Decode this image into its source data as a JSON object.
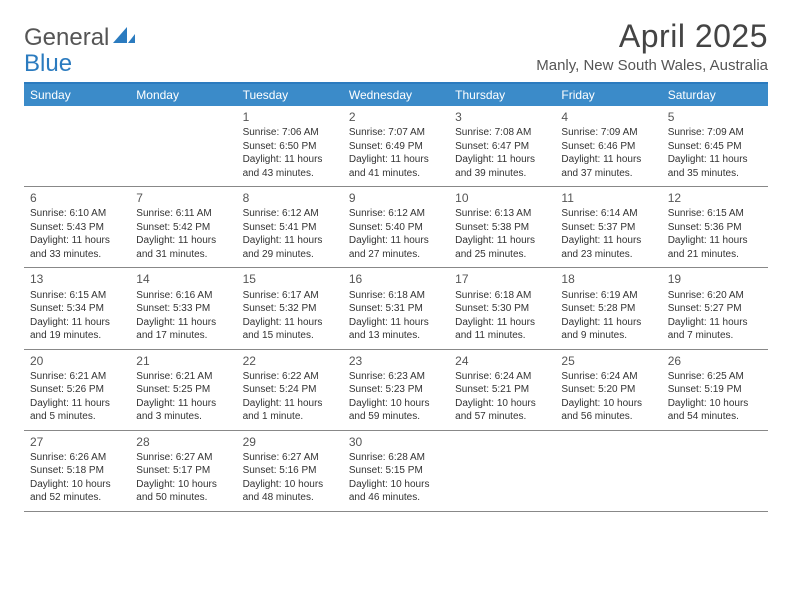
{
  "logo": {
    "text1": "General",
    "text2": "Blue"
  },
  "title": "April 2025",
  "location": "Manly, New South Wales, Australia",
  "colors": {
    "header_bar": "#3b8bc9",
    "top_rule": "#2b7bbf",
    "row_rule": "#888888",
    "text": "#333333",
    "title_text": "#444444"
  },
  "weekdays": [
    "Sunday",
    "Monday",
    "Tuesday",
    "Wednesday",
    "Thursday",
    "Friday",
    "Saturday"
  ],
  "weeks": [
    [
      {
        "num": "",
        "sunrise": "",
        "sunset": "",
        "daylight": ""
      },
      {
        "num": "",
        "sunrise": "",
        "sunset": "",
        "daylight": ""
      },
      {
        "num": "1",
        "sunrise": "Sunrise: 7:06 AM",
        "sunset": "Sunset: 6:50 PM",
        "daylight": "Daylight: 11 hours and 43 minutes."
      },
      {
        "num": "2",
        "sunrise": "Sunrise: 7:07 AM",
        "sunset": "Sunset: 6:49 PM",
        "daylight": "Daylight: 11 hours and 41 minutes."
      },
      {
        "num": "3",
        "sunrise": "Sunrise: 7:08 AM",
        "sunset": "Sunset: 6:47 PM",
        "daylight": "Daylight: 11 hours and 39 minutes."
      },
      {
        "num": "4",
        "sunrise": "Sunrise: 7:09 AM",
        "sunset": "Sunset: 6:46 PM",
        "daylight": "Daylight: 11 hours and 37 minutes."
      },
      {
        "num": "5",
        "sunrise": "Sunrise: 7:09 AM",
        "sunset": "Sunset: 6:45 PM",
        "daylight": "Daylight: 11 hours and 35 minutes."
      }
    ],
    [
      {
        "num": "6",
        "sunrise": "Sunrise: 6:10 AM",
        "sunset": "Sunset: 5:43 PM",
        "daylight": "Daylight: 11 hours and 33 minutes."
      },
      {
        "num": "7",
        "sunrise": "Sunrise: 6:11 AM",
        "sunset": "Sunset: 5:42 PM",
        "daylight": "Daylight: 11 hours and 31 minutes."
      },
      {
        "num": "8",
        "sunrise": "Sunrise: 6:12 AM",
        "sunset": "Sunset: 5:41 PM",
        "daylight": "Daylight: 11 hours and 29 minutes."
      },
      {
        "num": "9",
        "sunrise": "Sunrise: 6:12 AM",
        "sunset": "Sunset: 5:40 PM",
        "daylight": "Daylight: 11 hours and 27 minutes."
      },
      {
        "num": "10",
        "sunrise": "Sunrise: 6:13 AM",
        "sunset": "Sunset: 5:38 PM",
        "daylight": "Daylight: 11 hours and 25 minutes."
      },
      {
        "num": "11",
        "sunrise": "Sunrise: 6:14 AM",
        "sunset": "Sunset: 5:37 PM",
        "daylight": "Daylight: 11 hours and 23 minutes."
      },
      {
        "num": "12",
        "sunrise": "Sunrise: 6:15 AM",
        "sunset": "Sunset: 5:36 PM",
        "daylight": "Daylight: 11 hours and 21 minutes."
      }
    ],
    [
      {
        "num": "13",
        "sunrise": "Sunrise: 6:15 AM",
        "sunset": "Sunset: 5:34 PM",
        "daylight": "Daylight: 11 hours and 19 minutes."
      },
      {
        "num": "14",
        "sunrise": "Sunrise: 6:16 AM",
        "sunset": "Sunset: 5:33 PM",
        "daylight": "Daylight: 11 hours and 17 minutes."
      },
      {
        "num": "15",
        "sunrise": "Sunrise: 6:17 AM",
        "sunset": "Sunset: 5:32 PM",
        "daylight": "Daylight: 11 hours and 15 minutes."
      },
      {
        "num": "16",
        "sunrise": "Sunrise: 6:18 AM",
        "sunset": "Sunset: 5:31 PM",
        "daylight": "Daylight: 11 hours and 13 minutes."
      },
      {
        "num": "17",
        "sunrise": "Sunrise: 6:18 AM",
        "sunset": "Sunset: 5:30 PM",
        "daylight": "Daylight: 11 hours and 11 minutes."
      },
      {
        "num": "18",
        "sunrise": "Sunrise: 6:19 AM",
        "sunset": "Sunset: 5:28 PM",
        "daylight": "Daylight: 11 hours and 9 minutes."
      },
      {
        "num": "19",
        "sunrise": "Sunrise: 6:20 AM",
        "sunset": "Sunset: 5:27 PM",
        "daylight": "Daylight: 11 hours and 7 minutes."
      }
    ],
    [
      {
        "num": "20",
        "sunrise": "Sunrise: 6:21 AM",
        "sunset": "Sunset: 5:26 PM",
        "daylight": "Daylight: 11 hours and 5 minutes."
      },
      {
        "num": "21",
        "sunrise": "Sunrise: 6:21 AM",
        "sunset": "Sunset: 5:25 PM",
        "daylight": "Daylight: 11 hours and 3 minutes."
      },
      {
        "num": "22",
        "sunrise": "Sunrise: 6:22 AM",
        "sunset": "Sunset: 5:24 PM",
        "daylight": "Daylight: 11 hours and 1 minute."
      },
      {
        "num": "23",
        "sunrise": "Sunrise: 6:23 AM",
        "sunset": "Sunset: 5:23 PM",
        "daylight": "Daylight: 10 hours and 59 minutes."
      },
      {
        "num": "24",
        "sunrise": "Sunrise: 6:24 AM",
        "sunset": "Sunset: 5:21 PM",
        "daylight": "Daylight: 10 hours and 57 minutes."
      },
      {
        "num": "25",
        "sunrise": "Sunrise: 6:24 AM",
        "sunset": "Sunset: 5:20 PM",
        "daylight": "Daylight: 10 hours and 56 minutes."
      },
      {
        "num": "26",
        "sunrise": "Sunrise: 6:25 AM",
        "sunset": "Sunset: 5:19 PM",
        "daylight": "Daylight: 10 hours and 54 minutes."
      }
    ],
    [
      {
        "num": "27",
        "sunrise": "Sunrise: 6:26 AM",
        "sunset": "Sunset: 5:18 PM",
        "daylight": "Daylight: 10 hours and 52 minutes."
      },
      {
        "num": "28",
        "sunrise": "Sunrise: 6:27 AM",
        "sunset": "Sunset: 5:17 PM",
        "daylight": "Daylight: 10 hours and 50 minutes."
      },
      {
        "num": "29",
        "sunrise": "Sunrise: 6:27 AM",
        "sunset": "Sunset: 5:16 PM",
        "daylight": "Daylight: 10 hours and 48 minutes."
      },
      {
        "num": "30",
        "sunrise": "Sunrise: 6:28 AM",
        "sunset": "Sunset: 5:15 PM",
        "daylight": "Daylight: 10 hours and 46 minutes."
      },
      {
        "num": "",
        "sunrise": "",
        "sunset": "",
        "daylight": ""
      },
      {
        "num": "",
        "sunrise": "",
        "sunset": "",
        "daylight": ""
      },
      {
        "num": "",
        "sunrise": "",
        "sunset": "",
        "daylight": ""
      }
    ]
  ]
}
